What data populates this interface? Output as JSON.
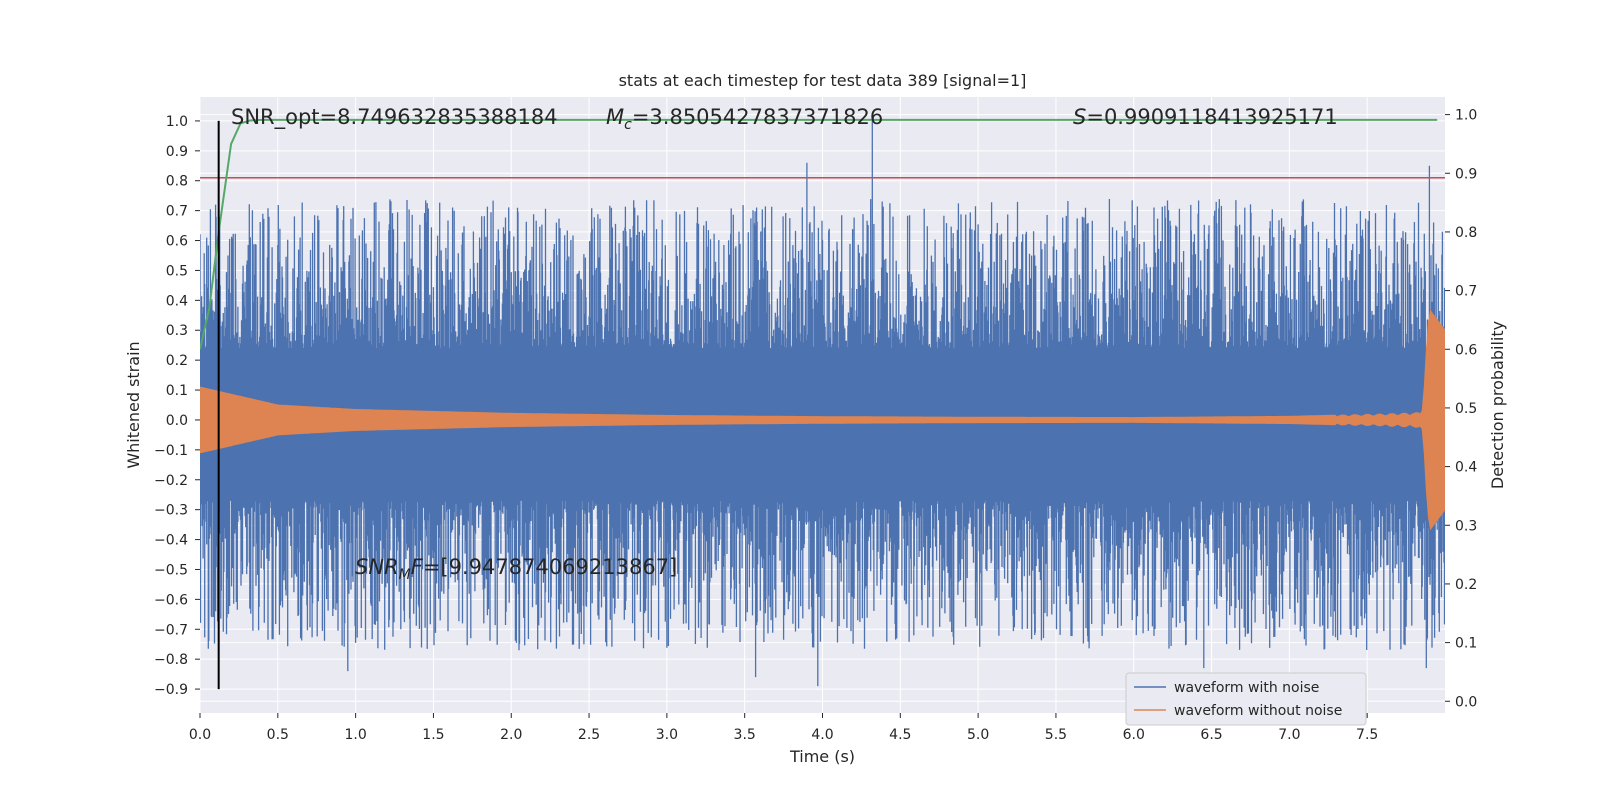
{
  "chart_data": {
    "type": "line",
    "title": "stats at each timestep for test data 389 [signal=1]",
    "xlabel": "Time (s)",
    "ylabel": "Whitened strain",
    "y2label": "Detection probability",
    "xlim": [
      0.0,
      8.0
    ],
    "ylim": [
      -0.98,
      1.08
    ],
    "y2lim": [
      -0.02,
      1.03
    ],
    "xticks": [
      "0.0",
      "0.5",
      "1.0",
      "1.5",
      "2.0",
      "2.5",
      "3.0",
      "3.5",
      "4.0",
      "4.5",
      "5.0",
      "5.5",
      "6.0",
      "6.5",
      "7.0",
      "7.5"
    ],
    "yticks": [
      "1.0",
      "0.9",
      "0.8",
      "0.7",
      "0.6",
      "0.5",
      "0.4",
      "0.3",
      "0.2",
      "0.1",
      "0.0",
      "−0.1",
      "−0.2",
      "−0.3",
      "−0.4",
      "−0.5",
      "−0.6",
      "−0.7",
      "−0.8",
      "−0.9"
    ],
    "y2ticks": [
      "1.0",
      "0.9",
      "0.8",
      "0.7",
      "0.6",
      "0.5",
      "0.4",
      "0.3",
      "0.2",
      "0.1",
      "0.0"
    ],
    "grid": true,
    "legend_position": "bottom-right",
    "annotations": {
      "snr_opt": "SNR_opt=8.749632835388184",
      "mc_symbol": "M",
      "mc_sub": "c",
      "mc_value": "=3.8505427837371826",
      "s_symbol": "S",
      "s_value": "=0.9909118413925171",
      "snr_mf_symbol": "SNR",
      "snr_mf_sub": "M",
      "snr_mf_tail": "F",
      "snr_mf_value": "=[9.947874069213867]"
    },
    "series": [
      {
        "name": "waveform with noise",
        "color": "#4c72b0",
        "envelope_max": 0.5,
        "min_max": [
          -0.9,
          1.0
        ],
        "spikes": [
          [
            3.9,
            0.86
          ],
          [
            4.32,
            1.0
          ],
          [
            7.9,
            0.85
          ],
          [
            3.97,
            -0.89
          ],
          [
            3.57,
            -0.86
          ],
          [
            6.45,
            -0.83
          ],
          [
            7.88,
            -0.83
          ],
          [
            0.1,
            -0.64
          ],
          [
            0.95,
            -0.84
          ],
          [
            2.05,
            -0.77
          ]
        ]
      },
      {
        "name": "waveform without noise",
        "color": "#dd8452",
        "amplitude_points": [
          [
            0.0,
            0.11
          ],
          [
            0.5,
            0.05
          ],
          [
            1.0,
            0.035
          ],
          [
            2.0,
            0.022
          ],
          [
            3.0,
            0.015
          ],
          [
            4.0,
            0.011
          ],
          [
            5.0,
            0.009
          ],
          [
            6.0,
            0.008
          ],
          [
            7.0,
            0.012
          ],
          [
            7.6,
            0.02
          ],
          [
            7.85,
            0.025
          ],
          [
            7.9,
            0.37
          ],
          [
            8.0,
            0.3
          ]
        ]
      },
      {
        "name": "detection probability",
        "color": "#55a868",
        "axis": "right",
        "points": [
          [
            0.0,
            0.6
          ],
          [
            0.06,
            0.67
          ],
          [
            0.12,
            0.8
          ],
          [
            0.2,
            0.95
          ],
          [
            0.26,
            0.985
          ],
          [
            0.32,
            0.99
          ],
          [
            0.4,
            0.991
          ],
          [
            7.95,
            0.991
          ]
        ]
      },
      {
        "name": "threshold",
        "color": "#c44e52",
        "axis": "left",
        "value": 0.81
      },
      {
        "name": "marker",
        "color": "#000000",
        "x": 0.12,
        "y_range": [
          -0.9,
          1.0
        ]
      }
    ]
  }
}
